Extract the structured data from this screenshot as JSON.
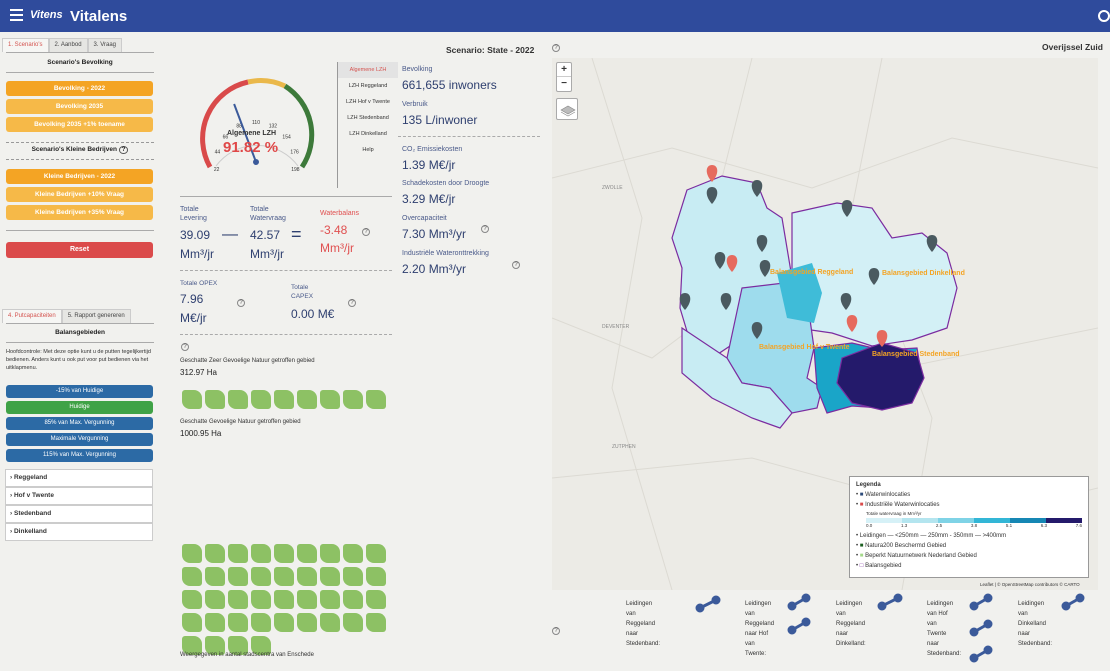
{
  "app": {
    "logo": "Vitens",
    "title": "Vitalens"
  },
  "tabs_top": [
    "1. Scenario's",
    "2. Aanbod",
    "3. Vraag"
  ],
  "bevolking": {
    "title": "Scenario's Bevolking",
    "buttons": [
      "Bevolking - 2022",
      "Bevolking 2035",
      "Bevolking 2035 +1% toename"
    ]
  },
  "bedrijven": {
    "title": "Scenario's Kleine Bedrijven",
    "buttons": [
      "Kleine Bedrijven - 2022",
      "Kleine Bedrijven +10% Vraag",
      "Kleine Bedrijven +35% Vraag"
    ]
  },
  "reset_label": "Reset",
  "tabs_bottom": [
    "4. Putcapaciteiten",
    "5. Rapport genereren"
  ],
  "balansgebieden": {
    "title": "Balansgebieden",
    "help": "Hoofdcontrole: Met deze optie kunt u de putten tegelijkertijd bedienen. Anders kunt u ook put voor put bedienen via het uitklapmenu.",
    "buttons": [
      "-15% van Huidige",
      "Huidige",
      "85% van Max. Vergunning",
      "Maximale Vergunning",
      "115% van Max. Vergunning"
    ],
    "areas": [
      "Reggeland",
      "Hof v Twente",
      "Stedenband",
      "Dinkelland"
    ]
  },
  "scenario_title": "Scenario: State - 2022",
  "gauge": {
    "label": "Algemene LZH",
    "value": "91.82 %",
    "value_num": 91.82,
    "ticks": [
      "0",
      "22",
      "44",
      "66",
      "88",
      "110",
      "132",
      "154",
      "176",
      "198",
      "220"
    ]
  },
  "side_menu": [
    "Algemene LZH",
    "LZH Reggeland",
    "LZH Hof v Twente",
    "LZH Stedenband",
    "LZH Dinkelland",
    "Help"
  ],
  "stats": {
    "bevolking_label": "Bevolking",
    "bevolking_value": "661,655 inwoners",
    "verbruik_label": "Verbruik",
    "verbruik_value": "135 L/inwoner",
    "co2_label": "CO₂ Emissiekosten",
    "co2_value": "1.39 M€/jr",
    "droogte_label": "Schadekosten door Droogte",
    "droogte_value": "3.29 M€/jr",
    "over_label": "Overcapaciteit",
    "over_value": "7.30 Mm³/yr",
    "industrie_label": "Industriële Wateronttrekking",
    "industrie_value": "2.20 Mm³/yr"
  },
  "balance": {
    "levering_label": "Totale\nLevering",
    "levering_value": "39.09",
    "levering_unit": "Mm³/jr",
    "vraag_label": "Totale\nWatervraag",
    "vraag_value": "42.57",
    "vraag_unit": "Mm³/jr",
    "balans_label": "Waterbalans",
    "balans_value": "-3.48",
    "balans_unit": "Mm³/jr",
    "minus": "—",
    "equals": "="
  },
  "costs": {
    "opex_label": "Totale OPEX",
    "opex_value": "7.96",
    "opex_unit": "M€/jr",
    "capex_label": "Totale\nCAPEX",
    "capex_value": "0.00 M€"
  },
  "natuur": {
    "zeer_label": "Geschatte Zeer Gevoelige Natuur getroffen gebied",
    "zeer_value": "312.97 Ha",
    "gev_label": "Geschatte Gevoelige Natuur getroffen gebied",
    "gev_value": "1000.95 Ha",
    "footnote": "Weergegeven in aantal stadscentra van Enschede"
  },
  "region_title": "Overijssel Zuid",
  "map": {
    "zoom_in": "+",
    "zoom_out": "−",
    "places": [
      "ZWOLLE",
      "DEVENTER",
      "ZUTPHEN"
    ],
    "labels": [
      "Balansgebied Reggeland",
      "Balansgebied Dinkelland",
      "Balansgebied Hof v Twente",
      "Balansgebied Stedenband"
    ]
  },
  "legend": {
    "title": "Legenda",
    "items": [
      "Waterwinlocaties",
      "Industriële Waterwinlocaties"
    ],
    "scale_title": "Totale watervraag in Mm³/yr",
    "scale_ticks": [
      "0.0",
      "1.3",
      "2.5",
      "3.8",
      "5.1",
      "6.3",
      "7.6"
    ],
    "leidingen": "Leidingen — <250mm — 250mm - 350mm — >400mm",
    "natura": "Natura200 Beschermd Gebied",
    "nnn": "Beperkt Natuurnetwerk Nederland Gebied",
    "balans": "Balansgebied"
  },
  "attribution": "Leaflet | © OpenStreetMap contributors © CARTO",
  "pipes": [
    "Leidingen\nvan\nReggeland\nnaar\nStedenband:",
    "Leidingen\nvan\nReggeland\nnaar Hof\nvan\nTwente:",
    "Leidingen\nvan\nReggeland\nnaar\nDinkelland:",
    "Leidingen\nvan Hof\nvan\nTwente\nnaar\nStedenband:",
    "Leidingen\nvan\nDinkelland\nnaar\nStedenband:"
  ],
  "colors": {
    "brand": "#2f4b9c",
    "orange": "#f4a424",
    "red": "#db4b4b",
    "blue": "#2c6aa5",
    "green": "#3fa246"
  }
}
